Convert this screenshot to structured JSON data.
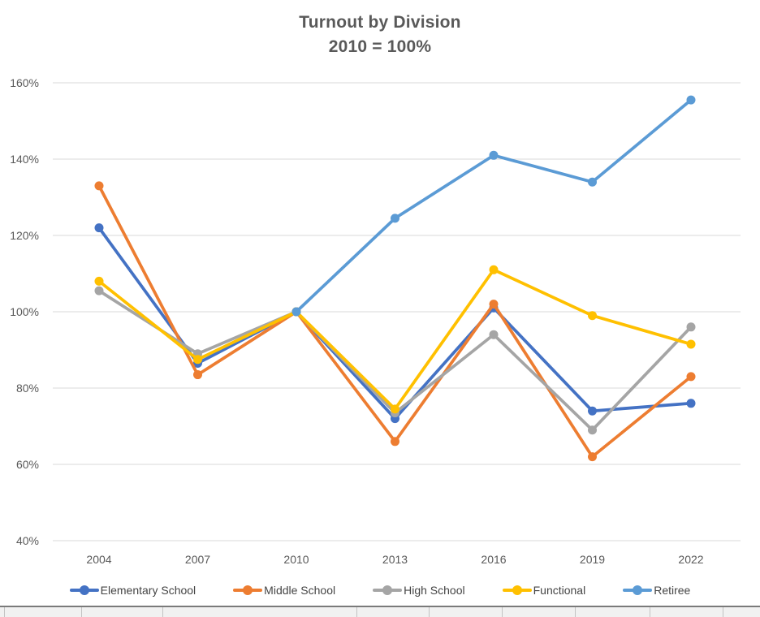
{
  "chart_data": {
    "type": "line",
    "title": "Turnout by Division",
    "subtitle": "2010 = 100%",
    "xlabel": "",
    "ylabel": "",
    "x": [
      "2004",
      "2007",
      "2010",
      "2013",
      "2016",
      "2019",
      "2022"
    ],
    "series": [
      {
        "name": "Elementary School",
        "color": "#4472C4",
        "values": [
          122,
          86.5,
          100,
          72,
          101,
          74,
          76
        ]
      },
      {
        "name": "Middle School",
        "color": "#ED7D31",
        "values": [
          133,
          83.5,
          100,
          66,
          102,
          62,
          83
        ]
      },
      {
        "name": "High School",
        "color": "#A5A5A5",
        "values": [
          105.5,
          89,
          100,
          73.5,
          94,
          69,
          96
        ]
      },
      {
        "name": "Functional",
        "color": "#FFC000",
        "values": [
          108,
          87.5,
          100,
          74.5,
          111,
          99,
          91.5
        ]
      },
      {
        "name": "Retiree",
        "color": "#5B9BD5",
        "values": [
          null,
          null,
          100,
          124.5,
          141,
          134,
          155.5
        ]
      }
    ],
    "ylim": [
      40,
      160
    ],
    "y_ticks": [
      "40%",
      "60%",
      "80%",
      "100%",
      "120%",
      "140%",
      "160%"
    ],
    "y_tick_values": [
      40,
      60,
      80,
      100,
      120,
      140,
      160
    ],
    "grid": true,
    "legend_position": "bottom",
    "axis_text_color": "#595959",
    "gridline_color": "#D9D9D9"
  }
}
